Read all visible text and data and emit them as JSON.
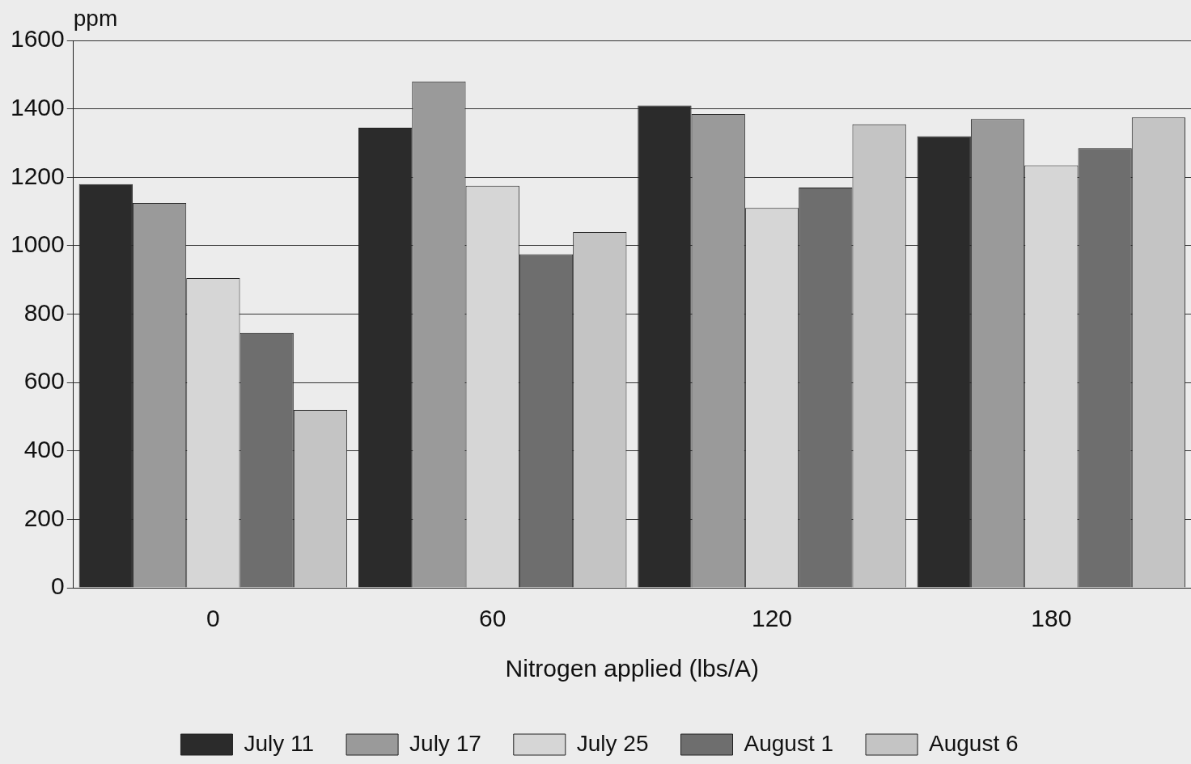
{
  "chart_data": {
    "type": "bar",
    "xlabel": "Nitrogen applied (lbs/A)",
    "ylabel": "ppm",
    "categories": [
      "0",
      "60",
      "120",
      "180"
    ],
    "series": [
      {
        "name": "July 11",
        "color": "#2b2b2b",
        "values": [
          1180,
          1345,
          1410,
          1320
        ]
      },
      {
        "name": "July 17",
        "color": "#9a9a9a",
        "values": [
          1125,
          1480,
          1385,
          1370
        ]
      },
      {
        "name": "July 25",
        "color": "#d6d6d6",
        "values": [
          905,
          1175,
          1110,
          1235
        ]
      },
      {
        "name": "August 1",
        "color": "#6e6e6e",
        "values": [
          745,
          975,
          1170,
          1285
        ]
      },
      {
        "name": "August 6",
        "color": "#c4c4c4",
        "values": [
          520,
          1040,
          1355,
          1375
        ]
      }
    ],
    "ylim": [
      0,
      1600
    ],
    "yticks": [
      0,
      200,
      400,
      600,
      800,
      1000,
      1200,
      1400,
      1600
    ],
    "grid": "y",
    "legend": "bottom"
  }
}
